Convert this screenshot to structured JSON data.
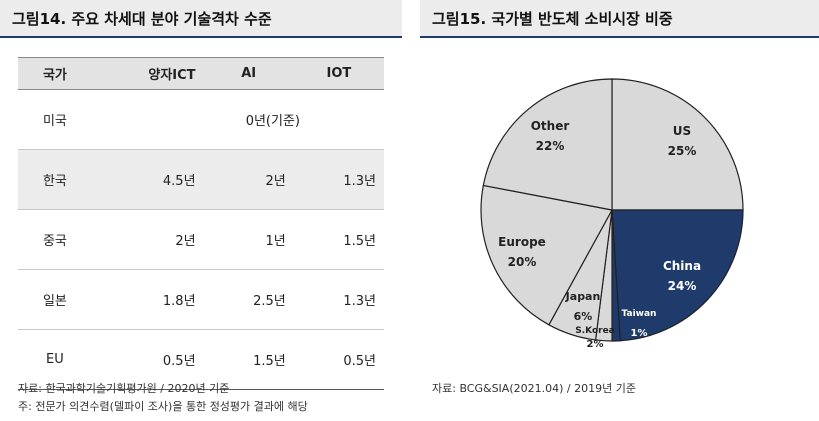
{
  "left_title": "그림14.  주요 차세대 분야 기술격차 수준",
  "right_title": "그림15.   국가별 반도체 소비시장 비중",
  "table": {
    "headers": [
      "국가",
      "양자ICT",
      "AI",
      "IOT"
    ],
    "rows": [
      {
        "country": "미국",
        "merged": "0년(기준)"
      },
      {
        "country": "한국",
        "values": [
          "4.5년",
          "2년",
          "1.3년"
        ]
      },
      {
        "country": "중국",
        "values": [
          "2년",
          "1년",
          "1.5년"
        ]
      },
      {
        "country": "일본",
        "values": [
          "1.8년",
          "2.5년",
          "1.3년"
        ]
      },
      {
        "country": "EU",
        "values": [
          "0.5년",
          "1.5년",
          "0.5년"
        ]
      }
    ]
  },
  "source_left": "자료: 한국과학기술기획평가원 / 2020년 기준",
  "note_left": "주: 전문가 의견수렴(델파이 조사)을 통한 정성평가 결과에 해당",
  "source_right": "자료: BCG&SIA(2021.04) / 2019년 기준",
  "chart_data": {
    "type": "pie",
    "start_angle_deg": 0,
    "direction": "clockwise",
    "slices": [
      {
        "label": "US",
        "value": 25,
        "display": "25%",
        "color": "#d9d9d9"
      },
      {
        "label": "China",
        "value": 24,
        "display": "24%",
        "color": "#1f3b6b"
      },
      {
        "label": "Taiwan",
        "value": 1,
        "display": "1%",
        "color": "#1f3b6b"
      },
      {
        "label": "S.Korea",
        "value": 2,
        "display": "2%",
        "color": "#d9d9d9"
      },
      {
        "label": "Japan",
        "value": 6,
        "display": "6%",
        "color": "#d9d9d9"
      },
      {
        "label": "Europe",
        "value": 20,
        "display": "20%",
        "color": "#d9d9d9"
      },
      {
        "label": "Other",
        "value": 22,
        "display": "22%",
        "color": "#d9d9d9"
      }
    ]
  }
}
